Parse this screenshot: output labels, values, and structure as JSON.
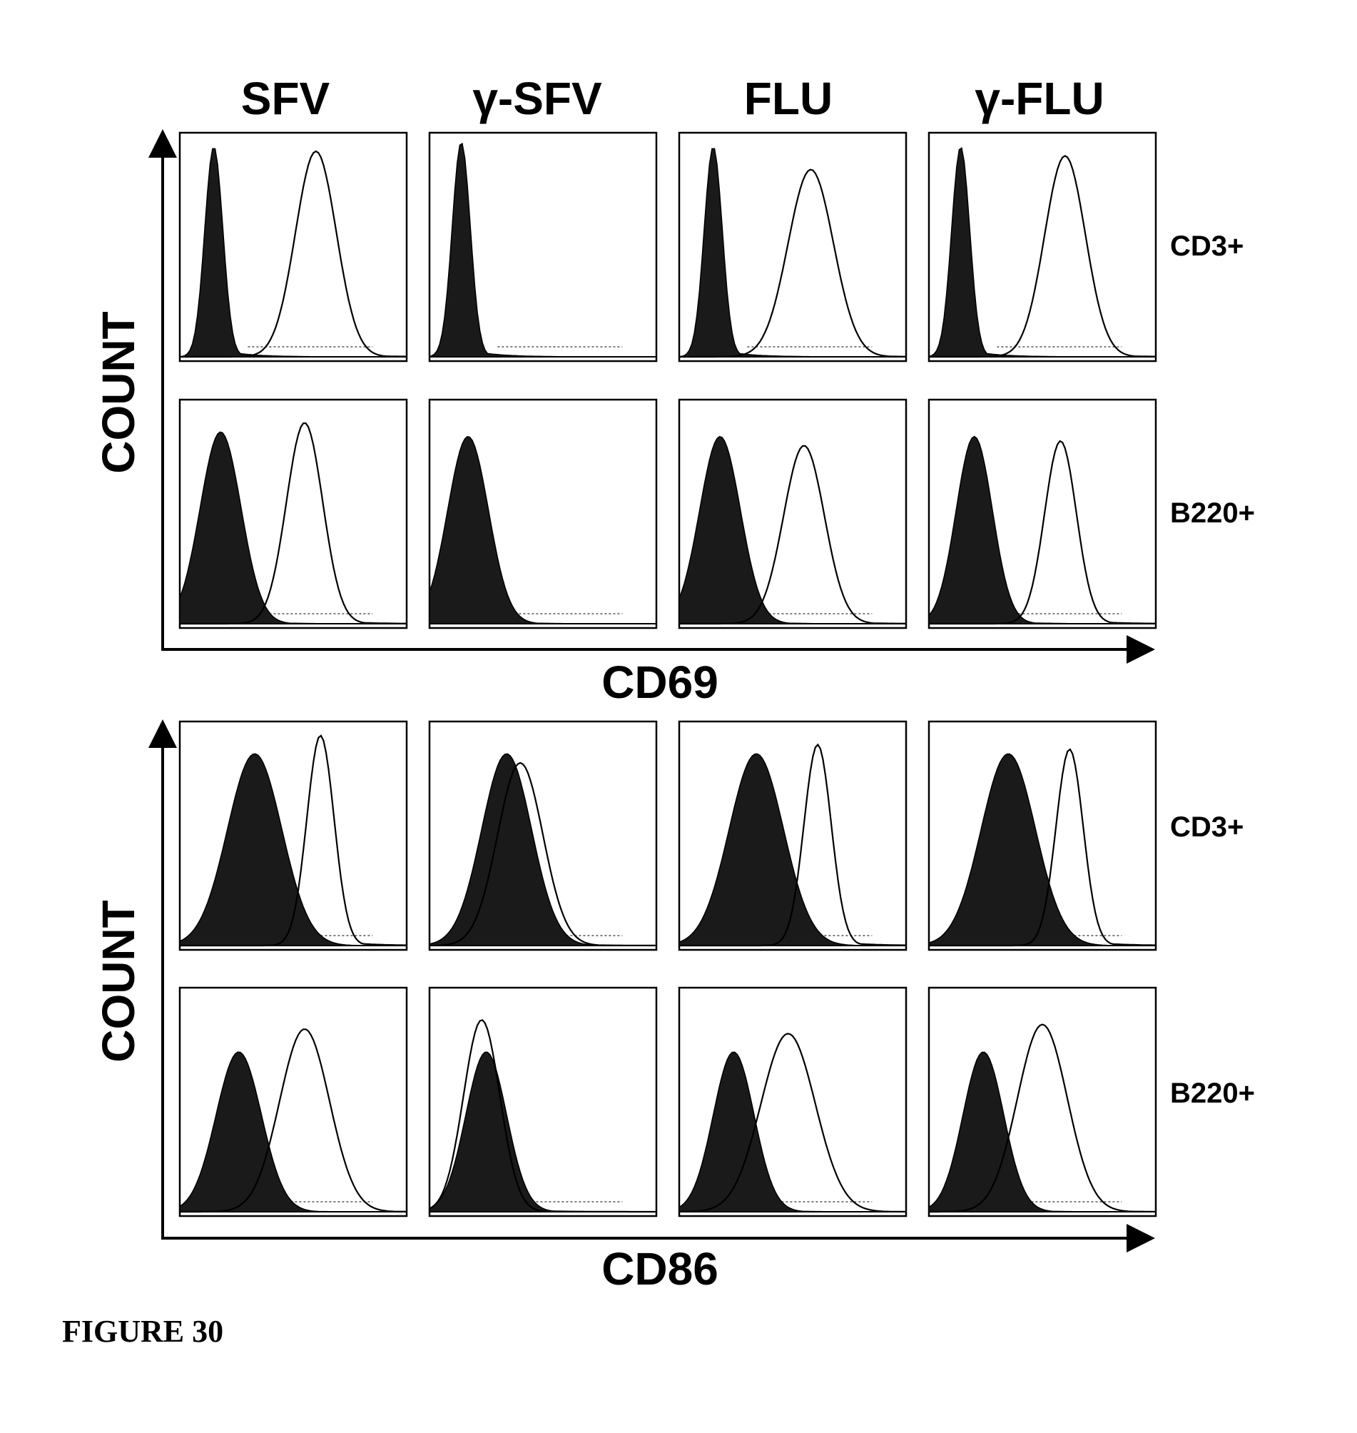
{
  "figure_label": "FIGURE 30",
  "column_headers": [
    "SFV",
    "γ-SFV",
    "FLU",
    "γ-FLU"
  ],
  "chart_data": [
    {
      "type": "histogram",
      "xlabel": "CD69",
      "ylabel": "COUNT",
      "columns": [
        "SFV",
        "γ-SFV",
        "FLU",
        "γ-FLU"
      ],
      "rows": [
        "CD3+",
        "B220+"
      ],
      "series_encoding": {
        "filled": "control (filled histogram)",
        "open": "stimulated (open line histogram)"
      },
      "panels": [
        {
          "row": "CD3+",
          "column": "SFV",
          "filled": {
            "peak": 0.15,
            "width": 0.04,
            "height": 0.92
          },
          "open": {
            "peak": 0.6,
            "width": 0.09,
            "height": 0.9
          }
        },
        {
          "row": "CD3+",
          "column": "γ-SFV",
          "filled": {
            "peak": 0.14,
            "width": 0.04,
            "height": 0.94
          },
          "open": null
        },
        {
          "row": "CD3+",
          "column": "FLU",
          "filled": {
            "peak": 0.15,
            "width": 0.04,
            "height": 0.92
          },
          "open": {
            "peak": 0.58,
            "width": 0.1,
            "height": 0.82
          }
        },
        {
          "row": "CD3+",
          "column": "γ-FLU",
          "filled": {
            "peak": 0.14,
            "width": 0.04,
            "height": 0.92
          },
          "open": {
            "peak": 0.6,
            "width": 0.09,
            "height": 0.88
          }
        },
        {
          "row": "B220+",
          "column": "SFV",
          "filled": {
            "peak": 0.18,
            "width": 0.09,
            "height": 0.84
          },
          "open": {
            "peak": 0.55,
            "width": 0.08,
            "height": 0.88
          }
        },
        {
          "row": "B220+",
          "column": "γ-SFV",
          "filled": {
            "peak": 0.17,
            "width": 0.09,
            "height": 0.82
          },
          "open": null
        },
        {
          "row": "B220+",
          "column": "FLU",
          "filled": {
            "peak": 0.18,
            "width": 0.09,
            "height": 0.82
          },
          "open": {
            "peak": 0.55,
            "width": 0.09,
            "height": 0.78
          }
        },
        {
          "row": "B220+",
          "column": "γ-FLU",
          "filled": {
            "peak": 0.2,
            "width": 0.08,
            "height": 0.82
          },
          "open": {
            "peak": 0.58,
            "width": 0.07,
            "height": 0.8
          }
        }
      ]
    },
    {
      "type": "histogram",
      "xlabel": "CD86",
      "ylabel": "COUNT",
      "columns": [
        "SFV",
        "γ-SFV",
        "FLU",
        "γ-FLU"
      ],
      "rows": [
        "CD3+",
        "B220+"
      ],
      "series_encoding": {
        "filled": "control (filled histogram)",
        "open": "stimulated (open line histogram)"
      },
      "panels": [
        {
          "row": "CD3+",
          "column": "SFV",
          "filled": {
            "peak": 0.33,
            "width": 0.12,
            "height": 0.84
          },
          "open": {
            "peak": 0.62,
            "width": 0.06,
            "height": 0.92
          }
        },
        {
          "row": "CD3+",
          "column": "γ-SFV",
          "filled": {
            "peak": 0.34,
            "width": 0.11,
            "height": 0.84
          },
          "open": {
            "peak": 0.4,
            "width": 0.1,
            "height": 0.8
          }
        },
        {
          "row": "CD3+",
          "column": "FLU",
          "filled": {
            "peak": 0.34,
            "width": 0.12,
            "height": 0.84
          },
          "open": {
            "peak": 0.61,
            "width": 0.06,
            "height": 0.88
          }
        },
        {
          "row": "CD3+",
          "column": "γ-FLU",
          "filled": {
            "peak": 0.35,
            "width": 0.12,
            "height": 0.84
          },
          "open": {
            "peak": 0.62,
            "width": 0.06,
            "height": 0.86
          }
        },
        {
          "row": "B220+",
          "column": "SFV",
          "filled": {
            "peak": 0.26,
            "width": 0.1,
            "height": 0.7
          },
          "open": {
            "peak": 0.55,
            "width": 0.11,
            "height": 0.8
          }
        },
        {
          "row": "B220+",
          "column": "γ-SFV",
          "filled": {
            "peak": 0.25,
            "width": 0.09,
            "height": 0.7
          },
          "open": {
            "peak": 0.23,
            "width": 0.08,
            "height": 0.84
          }
        },
        {
          "row": "B220+",
          "column": "FLU",
          "filled": {
            "peak": 0.24,
            "width": 0.09,
            "height": 0.7
          },
          "open": {
            "peak": 0.48,
            "width": 0.12,
            "height": 0.78
          }
        },
        {
          "row": "B220+",
          "column": "γ-FLU",
          "filled": {
            "peak": 0.24,
            "width": 0.09,
            "height": 0.7
          },
          "open": {
            "peak": 0.5,
            "width": 0.11,
            "height": 0.82
          }
        }
      ]
    }
  ]
}
